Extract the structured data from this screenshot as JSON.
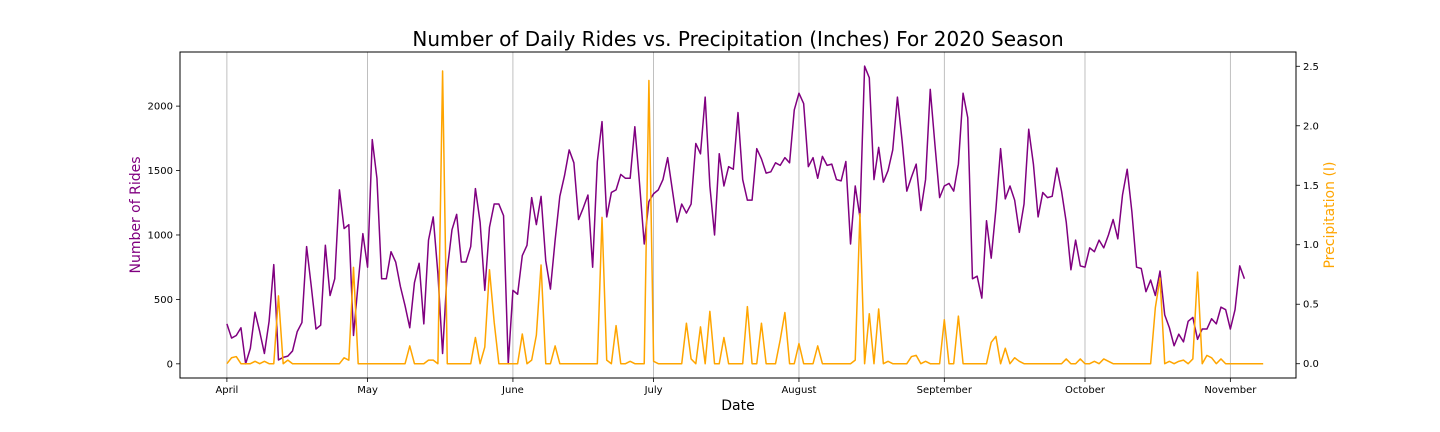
{
  "chart_data": {
    "type": "line",
    "title": "Number of Daily Rides vs. Precipitation (Inches) For 2020 Season",
    "xlabel": "Date",
    "ylabel_left": "Number of Rides",
    "ylabel_right": "Precipitation (I)",
    "x_start": "2020-04-01",
    "xlim": [
      "2020-03-22",
      "2020-11-15"
    ],
    "ylim_left": [
      -110,
      2420
    ],
    "ylim_right": [
      -0.12,
      2.62
    ],
    "x_ticks": [
      {
        "date": "2020-04-01",
        "label": "April"
      },
      {
        "date": "2020-05-01",
        "label": "May"
      },
      {
        "date": "2020-06-01",
        "label": "June"
      },
      {
        "date": "2020-07-01",
        "label": "July"
      },
      {
        "date": "2020-08-01",
        "label": "August"
      },
      {
        "date": "2020-09-01",
        "label": "September"
      },
      {
        "date": "2020-10-01",
        "label": "October"
      },
      {
        "date": "2020-11-01",
        "label": "November"
      }
    ],
    "y_ticks_left": [
      0,
      500,
      1000,
      1500,
      2000
    ],
    "y_ticks_right": [
      "0.0",
      "0.5",
      "1.0",
      "1.5",
      "2.0",
      "2.5"
    ],
    "y_ticks_right_values": [
      0,
      0.5,
      1.0,
      1.5,
      2.0,
      2.5
    ],
    "grid": "vertical",
    "colors": {
      "rides": "#800080",
      "precip": "#FFA500"
    },
    "series": [
      {
        "axis": "left",
        "values": [
          310,
          200,
          220,
          280,
          0,
          120,
          400,
          250,
          80,
          330,
          770,
          30,
          50,
          60,
          100,
          250,
          320,
          910,
          600,
          270,
          300,
          920,
          530,
          660,
          1350,
          1050,
          1080,
          220,
          630,
          1010,
          750,
          1740,
          1440,
          660,
          660,
          870,
          790,
          600,
          450,
          280,
          630,
          780,
          310,
          960,
          1140,
          700,
          80,
          730,
          1040,
          1160,
          790,
          790,
          910,
          1360,
          1100,
          570,
          1060,
          1240,
          1240,
          1150,
          0,
          570,
          540,
          840,
          920,
          1290,
          1080,
          1300,
          800,
          580,
          960,
          1300,
          1460,
          1660,
          1560,
          1120,
          1210,
          1310,
          750,
          1570,
          1880,
          1140,
          1330,
          1350,
          1470,
          1440,
          1440,
          1840,
          1400,
          930,
          1260,
          1320,
          1350,
          1430,
          1600,
          1350,
          1100,
          1240,
          1170,
          1240,
          1710,
          1630,
          2070,
          1380,
          1000,
          1630,
          1380,
          1530,
          1510,
          1950,
          1430,
          1270,
          1270,
          1670,
          1590,
          1480,
          1490,
          1560,
          1540,
          1600,
          1560,
          1970,
          2100,
          2020,
          1530,
          1600,
          1440,
          1610,
          1540,
          1550,
          1430,
          1420,
          1570,
          930,
          1380,
          1140,
          2310,
          2220,
          1430,
          1680,
          1410,
          1500,
          1660,
          2070,
          1730,
          1340,
          1450,
          1550,
          1190,
          1430,
          2130,
          1700,
          1290,
          1380,
          1400,
          1340,
          1550,
          2100,
          1910,
          660,
          680,
          510,
          1110,
          820,
          1200,
          1670,
          1280,
          1380,
          1270,
          1020,
          1240,
          1820,
          1550,
          1140,
          1330,
          1290,
          1300,
          1520,
          1340,
          1100,
          730,
          960,
          760,
          750,
          900,
          870,
          960,
          900,
          1000,
          1120,
          970,
          1310,
          1510,
          1180,
          750,
          740,
          560,
          650,
          530,
          720,
          380,
          280,
          140,
          230,
          170,
          330,
          360,
          190,
          270,
          270,
          350,
          310,
          440,
          420,
          270,
          420,
          760,
          660
        ]
      },
      {
        "axis": "right",
        "values": [
          0,
          0.05,
          0.06,
          0,
          0,
          0,
          0.02,
          0,
          0.02,
          0,
          0,
          0.57,
          0,
          0.03,
          0,
          0,
          0,
          0,
          0,
          0,
          0,
          0,
          0,
          0,
          0,
          0.05,
          0.03,
          0.81,
          0,
          0,
          0,
          0,
          0,
          0,
          0,
          0,
          0,
          0,
          0,
          0.15,
          0,
          0,
          0,
          0.03,
          0.03,
          0,
          2.46,
          0,
          0,
          0,
          0,
          0,
          0,
          0.22,
          0,
          0.14,
          0.79,
          0.35,
          0,
          0,
          0,
          0,
          0,
          0.25,
          0,
          0.03,
          0.24,
          0.83,
          0,
          0,
          0.15,
          0,
          0,
          0,
          0,
          0,
          0,
          0,
          0,
          0,
          1.23,
          0.03,
          0,
          0.32,
          0,
          0,
          0.02,
          0,
          0,
          0,
          2.38,
          0.02,
          0,
          0,
          0,
          0,
          0,
          0,
          0.34,
          0.04,
          0,
          0.31,
          0,
          0.44,
          0,
          0,
          0.22,
          0,
          0,
          0,
          0,
          0.48,
          0,
          0,
          0.34,
          0,
          0,
          0,
          0.2,
          0.43,
          0,
          0,
          0.17,
          0,
          0,
          0,
          0.15,
          0,
          0,
          0,
          0,
          0,
          0,
          0,
          0.03,
          1.26,
          0,
          0.42,
          0,
          0.46,
          0,
          0.02,
          0,
          0,
          0,
          0,
          0.06,
          0.07,
          0,
          0.02,
          0,
          0,
          0,
          0.37,
          0,
          0,
          0.4,
          0,
          0,
          0,
          0,
          0,
          0,
          0.18,
          0.23,
          0,
          0.13,
          0,
          0.05,
          0.02,
          0,
          0,
          0,
          0,
          0,
          0,
          0,
          0,
          0,
          0.04,
          0,
          0,
          0.04,
          0,
          0,
          0.02,
          0,
          0.04,
          0.02,
          0,
          0,
          0,
          0,
          0,
          0,
          0,
          0,
          0,
          0.47,
          0.72,
          0,
          0.02,
          0,
          0.02,
          0.03,
          0,
          0.04,
          0.77,
          0,
          0.07,
          0.05,
          0,
          0.04,
          0,
          0,
          0,
          0,
          0,
          0,
          0,
          0,
          0
        ]
      }
    ]
  }
}
